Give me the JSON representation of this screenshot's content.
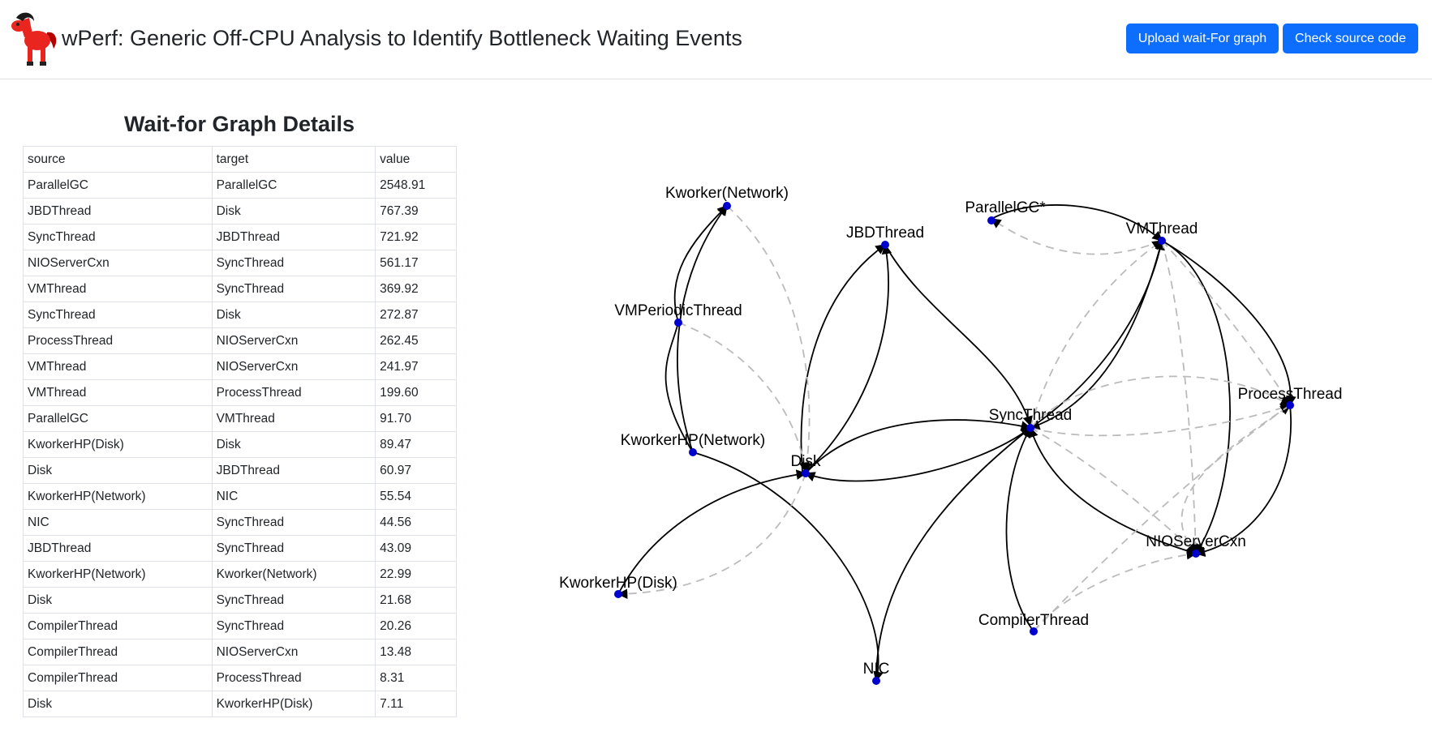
{
  "header": {
    "title": "wPerf: Generic Off-CPU Analysis to Identify Bottleneck Waiting Events",
    "upload_label": "Upload wait-For graph",
    "source_label": "Check source code",
    "accent_color": "#0d6efd"
  },
  "table": {
    "title": "Wait-for Graph Details",
    "columns": [
      "source",
      "target",
      "value"
    ],
    "rows": [
      [
        "ParallelGC",
        "ParallelGC",
        "2548.91"
      ],
      [
        "JBDThread",
        "Disk",
        "767.39"
      ],
      [
        "SyncThread",
        "JBDThread",
        "721.92"
      ],
      [
        "NIOServerCxn",
        "SyncThread",
        "561.17"
      ],
      [
        "VMThread",
        "SyncThread",
        "369.92"
      ],
      [
        "SyncThread",
        "Disk",
        "272.87"
      ],
      [
        "ProcessThread",
        "NIOServerCxn",
        "262.45"
      ],
      [
        "VMThread",
        "NIOServerCxn",
        "241.97"
      ],
      [
        "VMThread",
        "ProcessThread",
        "199.60"
      ],
      [
        "ParallelGC",
        "VMThread",
        "91.70"
      ],
      [
        "KworkerHP(Disk)",
        "Disk",
        "89.47"
      ],
      [
        "Disk",
        "JBDThread",
        "60.97"
      ],
      [
        "KworkerHP(Network)",
        "NIC",
        "55.54"
      ],
      [
        "NIC",
        "SyncThread",
        "44.56"
      ],
      [
        "JBDThread",
        "SyncThread",
        "43.09"
      ],
      [
        "KworkerHP(Network)",
        "Kworker(Network)",
        "22.99"
      ],
      [
        "Disk",
        "SyncThread",
        "21.68"
      ],
      [
        "CompilerThread",
        "SyncThread",
        "20.26"
      ],
      [
        "CompilerThread",
        "NIOServerCxn",
        "13.48"
      ],
      [
        "CompilerThread",
        "ProcessThread",
        "8.31"
      ],
      [
        "Disk",
        "KworkerHP(Disk)",
        "7.11"
      ]
    ]
  },
  "graph": {
    "nodes": [
      {
        "id": "Kworker(Network)",
        "label": "Kworker(Network)"
      },
      {
        "id": "ParallelGC",
        "label": "ParallelGC*"
      },
      {
        "id": "JBDThread",
        "label": "JBDThread"
      },
      {
        "id": "VMThread",
        "label": "VMThread"
      },
      {
        "id": "VMPeriodicThread",
        "label": "VMPeriodicThread"
      },
      {
        "id": "ProcessThread",
        "label": "ProcessThread"
      },
      {
        "id": "SyncThread",
        "label": "SyncThread"
      },
      {
        "id": "KworkerHP(Network)",
        "label": "KworkerHP(Network)"
      },
      {
        "id": "Disk",
        "label": "Disk"
      },
      {
        "id": "NIOServerCxn",
        "label": "NIOServerCxn"
      },
      {
        "id": "KworkerHP(Disk)",
        "label": "KworkerHP(Disk)"
      },
      {
        "id": "CompilerThread",
        "label": "CompilerThread"
      },
      {
        "id": "NIC",
        "label": "NIC"
      }
    ],
    "node_color": "#0000cc",
    "solid_edge_color": "#000000",
    "dashed_edge_color": "#bbbbbb"
  }
}
